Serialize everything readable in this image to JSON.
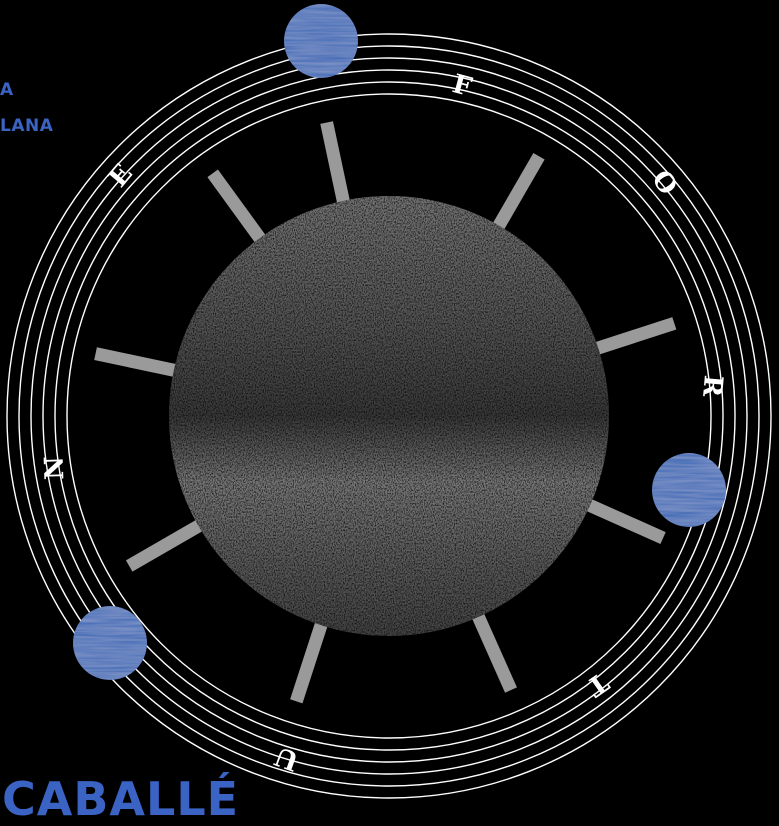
{
  "poster": {
    "side_text": [
      "A",
      "LANA"
    ],
    "bottom_title": "CABALLÉ",
    "ring_letters": [
      "F",
      "O",
      "R",
      "T",
      "U",
      "N",
      "E"
    ],
    "colors": {
      "background": "#000000",
      "accent_blue": "#3a63c4",
      "planet_blue": "#4a70b8",
      "rings": "#ffffff",
      "spokes": "#9a9a9a",
      "moon_light": "#8e8e8e",
      "moon_dark": "#2c2c2c"
    }
  }
}
